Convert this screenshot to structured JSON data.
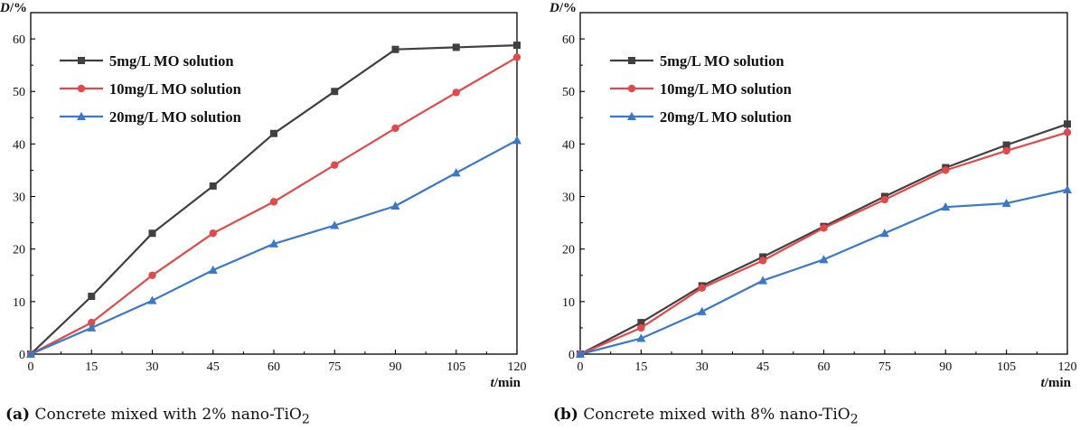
{
  "colors": {
    "series": [
      "#404040",
      "#e04a4a",
      "#3a78c9"
    ],
    "axis": "#000000"
  },
  "chart_data": [
    {
      "type": "line",
      "panel_label": "(a)",
      "caption": "Concrete mixed with 2% nano-TiO",
      "caption_sub": "2",
      "xlabel": "t/min",
      "ylabel": "D/%",
      "x": [
        0,
        15,
        30,
        45,
        60,
        75,
        90,
        105,
        120
      ],
      "xlim": [
        0,
        120
      ],
      "ylim": [
        0,
        65
      ],
      "xticks": [
        0,
        15,
        30,
        45,
        60,
        75,
        90,
        105,
        120
      ],
      "yticks": [
        0,
        10,
        20,
        30,
        40,
        50,
        60
      ],
      "grid": false,
      "legend_position": "top-left",
      "series": [
        {
          "name": "5mg/L MO solution",
          "marker": "square",
          "values": [
            0,
            11,
            23,
            32,
            42,
            50,
            58,
            58.4,
            58.8
          ]
        },
        {
          "name": "10mg/L MO solution",
          "marker": "circle",
          "values": [
            0,
            6,
            15,
            23,
            29,
            36,
            43,
            49.8,
            56.5
          ]
        },
        {
          "name": "20mg/L MO solution",
          "marker": "triangle",
          "values": [
            0,
            5,
            10.2,
            16,
            21,
            24.5,
            28.2,
            34.5,
            40.7
          ]
        }
      ]
    },
    {
      "type": "line",
      "panel_label": "(b)",
      "caption": "Concrete mixed with 8% nano-TiO",
      "caption_sub": "2",
      "xlabel": "t/min",
      "ylabel": "D/%",
      "x": [
        0,
        15,
        30,
        45,
        60,
        75,
        90,
        105,
        120
      ],
      "xlim": [
        0,
        120
      ],
      "ylim": [
        0,
        65
      ],
      "xticks": [
        0,
        15,
        30,
        45,
        60,
        75,
        90,
        105,
        120
      ],
      "yticks": [
        0,
        10,
        20,
        30,
        40,
        50,
        60
      ],
      "grid": false,
      "legend_position": "top-left",
      "series": [
        {
          "name": "5mg/L MO solution",
          "marker": "square",
          "values": [
            0,
            6,
            13,
            18.5,
            24.3,
            30,
            35.5,
            39.8,
            43.8
          ]
        },
        {
          "name": "10mg/L MO solution",
          "marker": "circle",
          "values": [
            0,
            5,
            12.6,
            17.8,
            24,
            29.4,
            35,
            38.7,
            42.2
          ]
        },
        {
          "name": "20mg/L MO solution",
          "marker": "triangle",
          "values": [
            0,
            3,
            8.1,
            14,
            18,
            23,
            28,
            28.7,
            31.3
          ]
        }
      ]
    }
  ]
}
